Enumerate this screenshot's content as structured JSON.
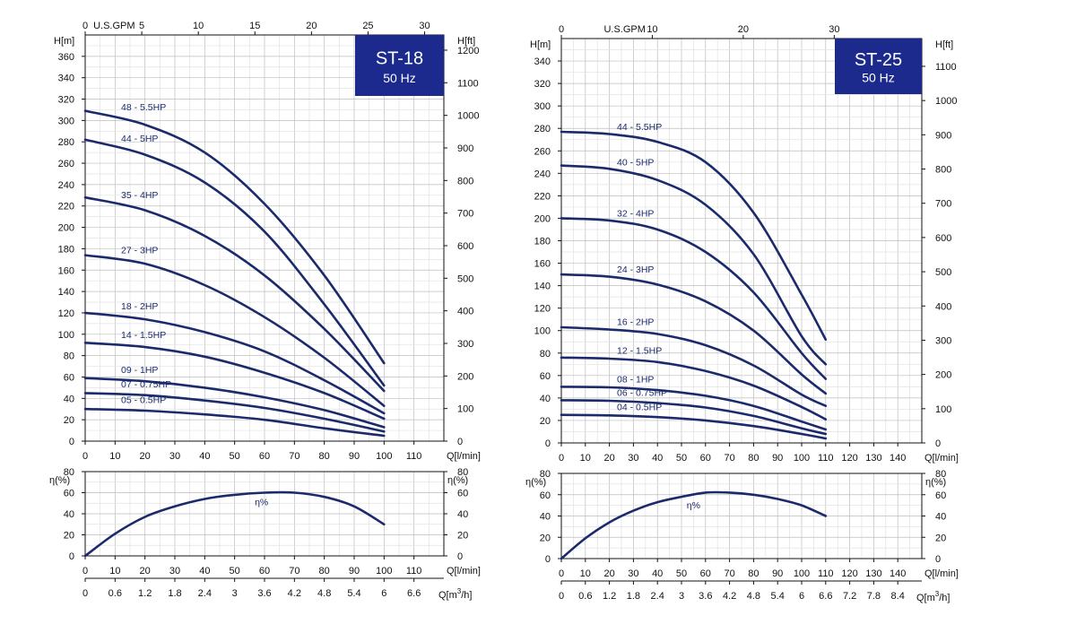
{
  "chart_data": [
    {
      "type": "line",
      "title": "ST-18",
      "subtitle": "50 Hz",
      "xlabel": "Q[l/min]",
      "x_range": [
        0,
        120
      ],
      "x_ticks": [
        0,
        10,
        20,
        30,
        40,
        50,
        60,
        70,
        80,
        90,
        100,
        110
      ],
      "top_axis": {
        "label": "U.S.GPM",
        "ticks": [
          "0",
          "5",
          "10",
          "15",
          "20",
          "25",
          "30"
        ],
        "values": [
          0,
          5,
          10,
          15,
          20,
          25,
          30
        ]
      },
      "ylabel_left": "H[m]",
      "ylim": [
        0,
        380
      ],
      "y_ticks": [
        0,
        20,
        40,
        60,
        80,
        100,
        120,
        140,
        160,
        180,
        200,
        220,
        240,
        260,
        280,
        300,
        320,
        340,
        360
      ],
      "ylabel_right": "H[ft]",
      "y_right_ticks": [
        0,
        100,
        200,
        300,
        400,
        500,
        600,
        700,
        800,
        900,
        1000,
        1100,
        1200
      ],
      "grid": true,
      "series": [
        {
          "name": "48 - 5.5HP",
          "x": [
            0,
            20,
            40,
            60,
            80,
            100
          ],
          "y": [
            309,
            296,
            270,
            222,
            155,
            73
          ]
        },
        {
          "name": "44 - 5HP",
          "x": [
            0,
            20,
            40,
            60,
            80,
            100
          ],
          "y": [
            282,
            268,
            242,
            196,
            128,
            52
          ]
        },
        {
          "name": "35 - 4HP",
          "x": [
            0,
            20,
            40,
            60,
            80,
            100
          ],
          "y": [
            228,
            216,
            192,
            155,
            105,
            47
          ]
        },
        {
          "name": "27 - 3HP",
          "x": [
            0,
            20,
            40,
            60,
            80,
            100
          ],
          "y": [
            174,
            166,
            146,
            116,
            78,
            33
          ]
        },
        {
          "name": "18 - 2HP",
          "x": [
            0,
            20,
            40,
            60,
            80,
            100
          ],
          "y": [
            120,
            114,
            102,
            84,
            57,
            26
          ]
        },
        {
          "name": "14 - 1.5HP",
          "x": [
            0,
            20,
            40,
            60,
            80,
            100
          ],
          "y": [
            92,
            88,
            79,
            64,
            45,
            21
          ]
        },
        {
          "name": "09 - 1HP",
          "x": [
            0,
            20,
            40,
            60,
            80,
            100
          ],
          "y": [
            59,
            56,
            50,
            41,
            29,
            13
          ]
        },
        {
          "name": "07 - 0.75HP",
          "x": [
            0,
            20,
            40,
            60,
            80,
            100
          ],
          "y": [
            45,
            43,
            38,
            31,
            21,
            9
          ]
        },
        {
          "name": "05 - 0.5HP",
          "x": [
            0,
            20,
            40,
            60,
            80,
            100
          ],
          "y": [
            30,
            28.5,
            25,
            20,
            12,
            5
          ]
        }
      ],
      "efficiency": {
        "label": "η%",
        "ylabel": "η(%)",
        "ylim": [
          0,
          80
        ],
        "y_ticks": [
          0,
          20,
          40,
          60,
          80
        ],
        "xlabel": "Q[l/min]",
        "x": [
          0,
          10,
          20,
          30,
          40,
          50,
          60,
          70,
          80,
          90,
          100
        ],
        "y": [
          0,
          21,
          37,
          47,
          54,
          58,
          60,
          60,
          56,
          47,
          30
        ]
      },
      "m3h_axis": {
        "label": "Q[m³/h]",
        "label_base": "Q[m",
        "label_exp": "3",
        "label_end": "/h]",
        "ticks": [
          "0",
          "0.6",
          "1.2",
          "1.8",
          "2.4",
          "3",
          "3.6",
          "4.2",
          "4.8",
          "5.4",
          "6",
          "6.6"
        ],
        "values": [
          0,
          0.6,
          1.2,
          1.8,
          2.4,
          3,
          3.6,
          4.2,
          4.8,
          5.4,
          6,
          6.6
        ]
      }
    },
    {
      "type": "line",
      "title": "ST-25",
      "subtitle": "50 Hz",
      "xlabel": "Q[l/min]",
      "x_range": [
        0,
        150
      ],
      "x_ticks": [
        0,
        10,
        20,
        30,
        40,
        50,
        60,
        70,
        80,
        90,
        100,
        110,
        120,
        130,
        140
      ],
      "top_axis": {
        "label": "U.S.GPM",
        "ticks": [
          "0",
          "10",
          "20",
          "30"
        ],
        "values": [
          0,
          10,
          20,
          30
        ]
      },
      "ylabel_left": "H[m]",
      "ylim": [
        0,
        360
      ],
      "y_ticks": [
        0,
        20,
        40,
        60,
        80,
        100,
        120,
        140,
        160,
        180,
        200,
        220,
        240,
        260,
        280,
        300,
        320,
        340
      ],
      "ylabel_right": "H[ft]",
      "y_right_ticks": [
        0,
        100,
        200,
        300,
        400,
        500,
        600,
        700,
        800,
        900,
        1000,
        1100
      ],
      "grid": true,
      "series": [
        {
          "name": "44 - 5.5HP",
          "x": [
            0,
            20,
            40,
            60,
            80,
            100,
            110
          ],
          "y": [
            277,
            275,
            268,
            250,
            205,
            132,
            92
          ]
        },
        {
          "name": "40 - 5HP",
          "x": [
            0,
            20,
            40,
            60,
            80,
            100,
            110
          ],
          "y": [
            247,
            244,
            234,
            212,
            168,
            95,
            70
          ]
        },
        {
          "name": "32 - 4HP",
          "x": [
            0,
            20,
            40,
            60,
            80,
            100,
            110
          ],
          "y": [
            200,
            198,
            190,
            170,
            134,
            80,
            57
          ]
        },
        {
          "name": "24 - 3HP",
          "x": [
            0,
            20,
            40,
            60,
            80,
            100,
            110
          ],
          "y": [
            150,
            148,
            141,
            126,
            100,
            61,
            44
          ]
        },
        {
          "name": "16 - 2HP",
          "x": [
            0,
            20,
            40,
            60,
            80,
            100,
            110
          ],
          "y": [
            103,
            101,
            97,
            87,
            69,
            43,
            33
          ]
        },
        {
          "name": "12 - 1.5HP",
          "x": [
            0,
            20,
            40,
            60,
            80,
            100,
            110
          ],
          "y": [
            76,
            75,
            72,
            64,
            51,
            32,
            21
          ]
        },
        {
          "name": "08 - 1HP",
          "x": [
            0,
            20,
            40,
            60,
            80,
            100,
            110
          ],
          "y": [
            50,
            49.5,
            47,
            42,
            33,
            19,
            12
          ]
        },
        {
          "name": "06 - 0.75HP",
          "x": [
            0,
            20,
            40,
            60,
            80,
            100,
            110
          ],
          "y": [
            38,
            37.5,
            35.5,
            31.5,
            24,
            13,
            8
          ]
        },
        {
          "name": "04 - 0.5HP",
          "x": [
            0,
            20,
            40,
            60,
            80,
            100,
            110
          ],
          "y": [
            25,
            24.5,
            23,
            20,
            15,
            8,
            4
          ]
        }
      ],
      "efficiency": {
        "label": "η%",
        "ylabel": "η(%)",
        "ylim": [
          0,
          80
        ],
        "y_ticks": [
          0,
          20,
          40,
          60,
          80
        ],
        "xlabel": "Q[l/min]",
        "x": [
          0,
          10,
          20,
          30,
          40,
          50,
          60,
          70,
          80,
          90,
          100,
          110
        ],
        "y": [
          0,
          19,
          34,
          45,
          53,
          58,
          62,
          62,
          60,
          56,
          50,
          40
        ]
      },
      "m3h_axis": {
        "label": "Q[m³/h]",
        "label_base": "Q[m",
        "label_exp": "3",
        "label_end": "/h]",
        "ticks": [
          "0",
          "0.6",
          "1.2",
          "1.8",
          "2.4",
          "3",
          "3.6",
          "4.2",
          "4.8",
          "5.4",
          "6",
          "6.6",
          "7.2",
          "7.8",
          "8.4"
        ],
        "values": [
          0,
          0.6,
          1.2,
          1.8,
          2.4,
          3,
          3.6,
          4.2,
          4.8,
          5.4,
          6,
          6.6,
          7.2,
          7.8,
          8.4
        ]
      }
    }
  ],
  "colors": {
    "curve": "#1b2a6b",
    "badge": "#1b2a8c",
    "grid": "#c8c8c8",
    "axis": "#111111"
  }
}
